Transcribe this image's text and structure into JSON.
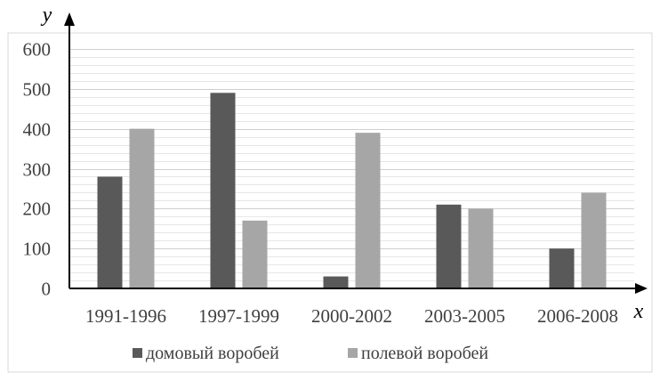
{
  "chart_data": {
    "type": "bar",
    "title": "",
    "xlabel": "x",
    "ylabel": "y",
    "categories": [
      "1991-1996",
      "1997-1999",
      "2000-2002",
      "2003-2005",
      "2006-2008"
    ],
    "series": [
      {
        "name": "домовый воробей",
        "values": [
          280,
          490,
          30,
          210,
          100
        ],
        "color": "#595959"
      },
      {
        "name": "полевой воробей",
        "values": [
          400,
          170,
          390,
          200,
          240
        ],
        "color": "#a6a6a6"
      }
    ],
    "ylim": [
      0,
      600
    ],
    "yticks": [
      0,
      100,
      200,
      300,
      400,
      500,
      600
    ],
    "minor_gridlines": true,
    "legend": "bottom",
    "colors": {
      "axis": "#000000",
      "major_grid": "#cfcfcf",
      "minor_grid": "#e6e6e6",
      "frame": "#d9d9d9",
      "text": "#404040"
    }
  }
}
